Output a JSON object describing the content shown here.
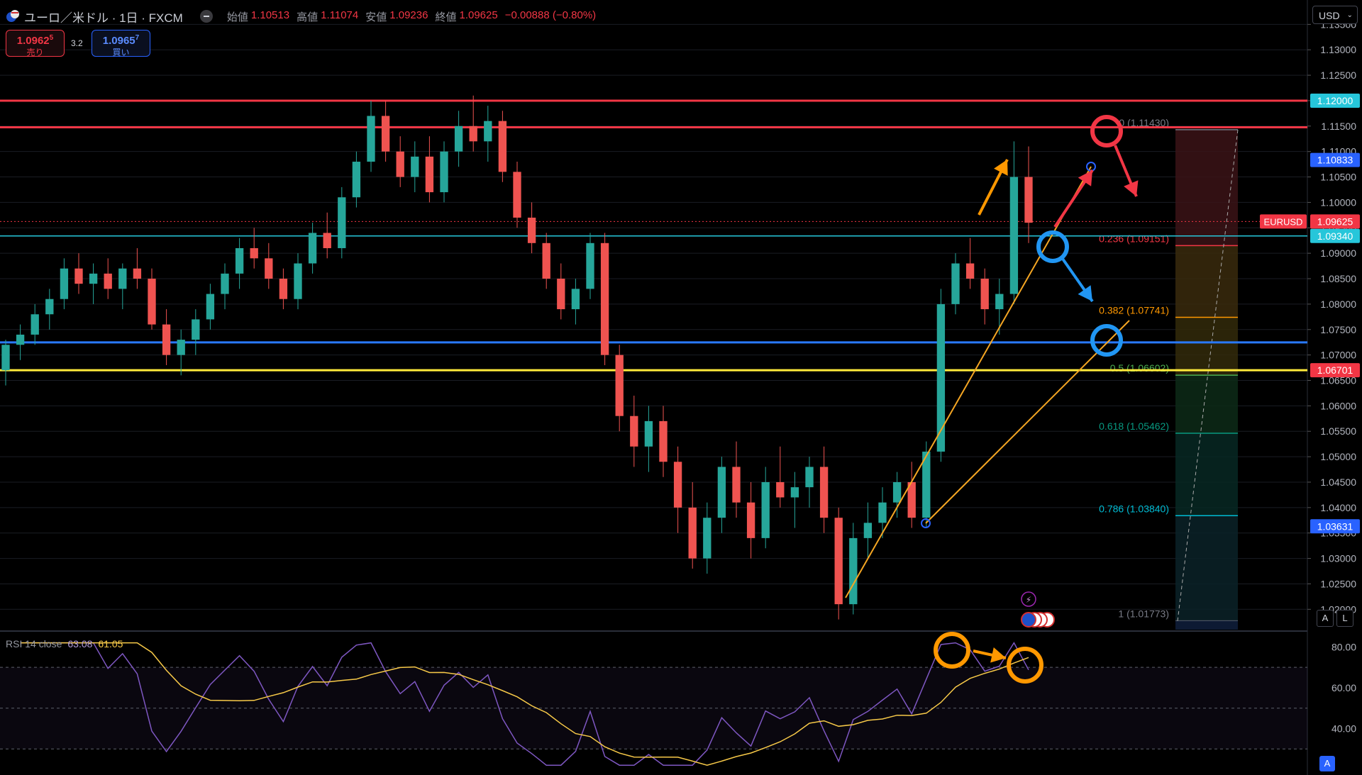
{
  "header": {
    "symbol_title": "ユーロ／米ドル · 1日 · FXCM",
    "ohlc": [
      {
        "label": "始値",
        "value": "1.10513"
      },
      {
        "label": "高値",
        "value": "1.11074"
      },
      {
        "label": "安値",
        "value": "1.09236"
      },
      {
        "label": "終値",
        "value": "1.09625"
      },
      {
        "label": "",
        "value": "−0.00888 (−0.80%)"
      }
    ]
  },
  "trade": {
    "sell_price_main": "1.0962",
    "sell_price_sup": "5",
    "sell_label": "売り",
    "spread": "3.2",
    "buy_price_main": "1.0965",
    "buy_price_sup": "7",
    "buy_label": "買い"
  },
  "currency_select": "USD",
  "scale_buttons": {
    "auto": "A",
    "log": "L"
  },
  "rsi": {
    "name": "RSI 14 close",
    "value": "63.08",
    "ma_value": "61.05",
    "ticks": [
      "80.00",
      "60.00",
      "40.00"
    ]
  },
  "price_axis": {
    "ticks": [
      "1.13500",
      "1.13000",
      "1.12500",
      "1.12000",
      "1.11500",
      "1.11000",
      "1.10500",
      "1.10000",
      "1.09500",
      "1.09000",
      "1.08500",
      "1.08000",
      "1.07500",
      "1.07000",
      "1.06500",
      "1.06000",
      "1.05500",
      "1.05000",
      "1.04500",
      "1.04000",
      "1.03500",
      "1.03000",
      "1.02500",
      "1.02000"
    ],
    "badges": [
      {
        "text": "1.12000",
        "price": 1.12,
        "color": "#26c6da"
      },
      {
        "text": "1.10833",
        "price": 1.10833,
        "color": "#2962ff"
      },
      {
        "text": "1.09625",
        "price": 1.09625,
        "color": "#f23645",
        "tag": "EURUSD"
      },
      {
        "text": "1.09340",
        "price": 1.0934,
        "color": "#26c6da"
      },
      {
        "text": "1.06701",
        "price": 1.06701,
        "color": "#f23645"
      },
      {
        "text": "1.03631",
        "price": 1.03631,
        "color": "#2962ff"
      }
    ]
  },
  "fib": [
    {
      "label": "0 (1.11430)",
      "price": 1.1143,
      "color": "#787b86"
    },
    {
      "label": "0.236 (1.09151)",
      "price": 1.09151,
      "color": "#f23645"
    },
    {
      "label": "0.382 (1.07741)",
      "price": 1.07741,
      "color": "#ff9800"
    },
    {
      "label": "0.5 (1.06602)",
      "price": 1.06602,
      "color": "#4caf50"
    },
    {
      "label": "0.618 (1.05462)",
      "price": 1.05462,
      "color": "#089981"
    },
    {
      "label": "0.786 (1.03840)",
      "price": 1.0384,
      "color": "#00bcd4"
    },
    {
      "label": "1 (1.01773)",
      "price": 1.01773,
      "color": "#787b86"
    }
  ],
  "horizontal_lines": [
    {
      "price": 1.12,
      "color": "#f23645"
    },
    {
      "price": 1.11476,
      "color": "#f23645"
    },
    {
      "price": 1.0934,
      "color": "#26c6da"
    },
    {
      "price": 1.07248,
      "color": "#2979ff"
    },
    {
      "price": 1.06701,
      "color": "#ffeb3b"
    }
  ],
  "colors": {
    "up": "#26a69a",
    "down": "#ef5350",
    "background": "#000000",
    "rsi_line": "#7e57c2",
    "rsi_ma": "#f7c948",
    "annotation_orange": "#ff9800",
    "annotation_red": "#f23645",
    "annotation_blue": "#2196f3"
  },
  "chart_data": {
    "type": "candlestick",
    "price_range": [
      1.016,
      1.137
    ],
    "ohlc_series_approx": [
      [
        1.067,
        1.073,
        1.064,
        1.072
      ],
      [
        1.072,
        1.076,
        1.069,
        1.074
      ],
      [
        1.074,
        1.08,
        1.072,
        1.078
      ],
      [
        1.078,
        1.083,
        1.075,
        1.081
      ],
      [
        1.081,
        1.089,
        1.079,
        1.087
      ],
      [
        1.087,
        1.09,
        1.082,
        1.084
      ],
      [
        1.084,
        1.088,
        1.08,
        1.086
      ],
      [
        1.086,
        1.089,
        1.081,
        1.083
      ],
      [
        1.083,
        1.088,
        1.079,
        1.087
      ],
      [
        1.087,
        1.091,
        1.083,
        1.085
      ],
      [
        1.085,
        1.087,
        1.075,
        1.076
      ],
      [
        1.076,
        1.079,
        1.068,
        1.07
      ],
      [
        1.07,
        1.075,
        1.066,
        1.073
      ],
      [
        1.073,
        1.079,
        1.07,
        1.077
      ],
      [
        1.077,
        1.084,
        1.075,
        1.082
      ],
      [
        1.082,
        1.088,
        1.079,
        1.086
      ],
      [
        1.086,
        1.093,
        1.083,
        1.091
      ],
      [
        1.091,
        1.095,
        1.087,
        1.089
      ],
      [
        1.089,
        1.092,
        1.083,
        1.085
      ],
      [
        1.085,
        1.087,
        1.079,
        1.081
      ],
      [
        1.081,
        1.09,
        1.079,
        1.088
      ],
      [
        1.088,
        1.096,
        1.086,
        1.094
      ],
      [
        1.094,
        1.098,
        1.089,
        1.091
      ],
      [
        1.091,
        1.103,
        1.089,
        1.101
      ],
      [
        1.101,
        1.11,
        1.099,
        1.108
      ],
      [
        1.108,
        1.12,
        1.106,
        1.117
      ],
      [
        1.117,
        1.12,
        1.108,
        1.11
      ],
      [
        1.11,
        1.113,
        1.103,
        1.105
      ],
      [
        1.105,
        1.112,
        1.102,
        1.109
      ],
      [
        1.109,
        1.113,
        1.1,
        1.102
      ],
      [
        1.102,
        1.112,
        1.1,
        1.11
      ],
      [
        1.11,
        1.118,
        1.107,
        1.115
      ],
      [
        1.115,
        1.121,
        1.11,
        1.112
      ],
      [
        1.112,
        1.119,
        1.108,
        1.116
      ],
      [
        1.116,
        1.118,
        1.104,
        1.106
      ],
      [
        1.106,
        1.108,
        1.095,
        1.097
      ],
      [
        1.097,
        1.1,
        1.09,
        1.092
      ],
      [
        1.092,
        1.094,
        1.083,
        1.085
      ],
      [
        1.085,
        1.088,
        1.077,
        1.079
      ],
      [
        1.079,
        1.085,
        1.076,
        1.083
      ],
      [
        1.083,
        1.094,
        1.081,
        1.092
      ],
      [
        1.092,
        1.094,
        1.068,
        1.07
      ],
      [
        1.07,
        1.072,
        1.055,
        1.058
      ],
      [
        1.058,
        1.062,
        1.048,
        1.052
      ],
      [
        1.052,
        1.06,
        1.047,
        1.057
      ],
      [
        1.057,
        1.06,
        1.046,
        1.049
      ],
      [
        1.049,
        1.052,
        1.035,
        1.04
      ],
      [
        1.04,
        1.045,
        1.028,
        1.03
      ],
      [
        1.03,
        1.041,
        1.027,
        1.038
      ],
      [
        1.038,
        1.05,
        1.035,
        1.048
      ],
      [
        1.048,
        1.053,
        1.038,
        1.041
      ],
      [
        1.041,
        1.045,
        1.03,
        1.034
      ],
      [
        1.034,
        1.048,
        1.032,
        1.045
      ],
      [
        1.045,
        1.052,
        1.04,
        1.042
      ],
      [
        1.042,
        1.047,
        1.036,
        1.044
      ],
      [
        1.044,
        1.05,
        1.04,
        1.048
      ],
      [
        1.048,
        1.052,
        1.035,
        1.038
      ],
      [
        1.038,
        1.04,
        1.018,
        1.021
      ],
      [
        1.021,
        1.037,
        1.019,
        1.034
      ],
      [
        1.034,
        1.041,
        1.03,
        1.037
      ],
      [
        1.037,
        1.044,
        1.034,
        1.041
      ],
      [
        1.041,
        1.047,
        1.038,
        1.045
      ],
      [
        1.045,
        1.049,
        1.036,
        1.038
      ],
      [
        1.038,
        1.053,
        1.036,
        1.051
      ],
      [
        1.051,
        1.083,
        1.049,
        1.08
      ],
      [
        1.08,
        1.09,
        1.078,
        1.088
      ],
      [
        1.088,
        1.093,
        1.083,
        1.085
      ],
      [
        1.085,
        1.087,
        1.076,
        1.079
      ],
      [
        1.079,
        1.085,
        1.074,
        1.082
      ],
      [
        1.082,
        1.112,
        1.08,
        1.105
      ],
      [
        1.105,
        1.111,
        1.092,
        1.096
      ]
    ]
  }
}
